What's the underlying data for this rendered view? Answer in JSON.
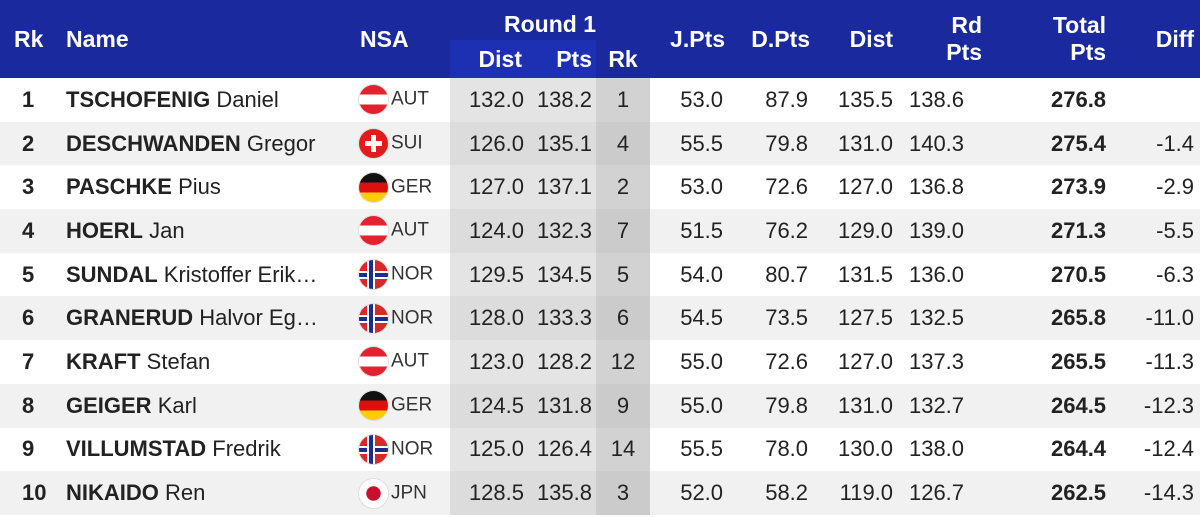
{
  "headers": {
    "rk": "Rk",
    "name": "Name",
    "nsa": "NSA",
    "round1": "Round 1",
    "dist": "Dist",
    "pts": "Pts",
    "rk1": "Rk",
    "jpts": "J.Pts",
    "dpts": "D.Pts",
    "dist_total": "Dist",
    "rdpts_line1": "Rd",
    "rdpts_line2": "Pts",
    "total_line1": "Total",
    "total_line2": "Pts",
    "diff": "Diff"
  },
  "rows": [
    {
      "rk": "1",
      "last": "TSCHOFENIG",
      "first": "Daniel",
      "flag": "aut",
      "nsa": "AUT",
      "dist1": "132.0",
      "pts1": "138.2",
      "rk1": "1",
      "jpts": "53.0",
      "dpts": "87.9",
      "dist": "135.5",
      "rdpts": "138.6",
      "total": "276.8",
      "diff": ""
    },
    {
      "rk": "2",
      "last": "DESCHWANDEN",
      "first": "Gregor",
      "flag": "sui",
      "nsa": "SUI",
      "dist1": "126.0",
      "pts1": "135.1",
      "rk1": "4",
      "jpts": "55.5",
      "dpts": "79.8",
      "dist": "131.0",
      "rdpts": "140.3",
      "total": "275.4",
      "diff": "-1.4"
    },
    {
      "rk": "3",
      "last": "PASCHKE",
      "first": "Pius",
      "flag": "ger",
      "nsa": "GER",
      "dist1": "127.0",
      "pts1": "137.1",
      "rk1": "2",
      "jpts": "53.0",
      "dpts": "72.6",
      "dist": "127.0",
      "rdpts": "136.8",
      "total": "273.9",
      "diff": "-2.9"
    },
    {
      "rk": "4",
      "last": "HOERL",
      "first": "Jan",
      "flag": "aut",
      "nsa": "AUT",
      "dist1": "124.0",
      "pts1": "132.3",
      "rk1": "7",
      "jpts": "51.5",
      "dpts": "76.2",
      "dist": "129.0",
      "rdpts": "139.0",
      "total": "271.3",
      "diff": "-5.5"
    },
    {
      "rk": "5",
      "last": "SUNDAL",
      "first": "Kristoffer Erik…",
      "flag": "nor",
      "nsa": "NOR",
      "dist1": "129.5",
      "pts1": "134.5",
      "rk1": "5",
      "jpts": "54.0",
      "dpts": "80.7",
      "dist": "131.5",
      "rdpts": "136.0",
      "total": "270.5",
      "diff": "-6.3"
    },
    {
      "rk": "6",
      "last": "GRANERUD",
      "first": "Halvor Eg…",
      "flag": "nor",
      "nsa": "NOR",
      "dist1": "128.0",
      "pts1": "133.3",
      "rk1": "6",
      "jpts": "54.5",
      "dpts": "73.5",
      "dist": "127.5",
      "rdpts": "132.5",
      "total": "265.8",
      "diff": "-11.0"
    },
    {
      "rk": "7",
      "last": "KRAFT",
      "first": "Stefan",
      "flag": "aut",
      "nsa": "AUT",
      "dist1": "123.0",
      "pts1": "128.2",
      "rk1": "12",
      "jpts": "55.0",
      "dpts": "72.6",
      "dist": "127.0",
      "rdpts": "137.3",
      "total": "265.5",
      "diff": "-11.3"
    },
    {
      "rk": "8",
      "last": "GEIGER",
      "first": "Karl",
      "flag": "ger",
      "nsa": "GER",
      "dist1": "124.5",
      "pts1": "131.8",
      "rk1": "9",
      "jpts": "55.0",
      "dpts": "79.8",
      "dist": "131.0",
      "rdpts": "132.7",
      "total": "264.5",
      "diff": "-12.3"
    },
    {
      "rk": "9",
      "last": "VILLUMSTAD",
      "first": "Fredrik",
      "flag": "nor",
      "nsa": "NOR",
      "dist1": "125.0",
      "pts1": "126.4",
      "rk1": "14",
      "jpts": "55.5",
      "dpts": "78.0",
      "dist": "130.0",
      "rdpts": "138.0",
      "total": "264.4",
      "diff": "-12.4"
    },
    {
      "rk": "10",
      "last": "NIKAIDO",
      "first": "Ren",
      "flag": "jpn",
      "nsa": "JPN",
      "dist1": "128.5",
      "pts1": "135.8",
      "rk1": "3",
      "jpts": "52.0",
      "dpts": "58.2",
      "dist": "119.0",
      "rdpts": "126.7",
      "total": "262.5",
      "diff": "-14.3"
    }
  ],
  "colors": {
    "header_bg": "#1a2a9e",
    "header_text": "#ffffff",
    "round1_band": "#e4e4e4",
    "round1_rank_band": "#d2d2d2",
    "row_alt": "#f1f1f1"
  }
}
